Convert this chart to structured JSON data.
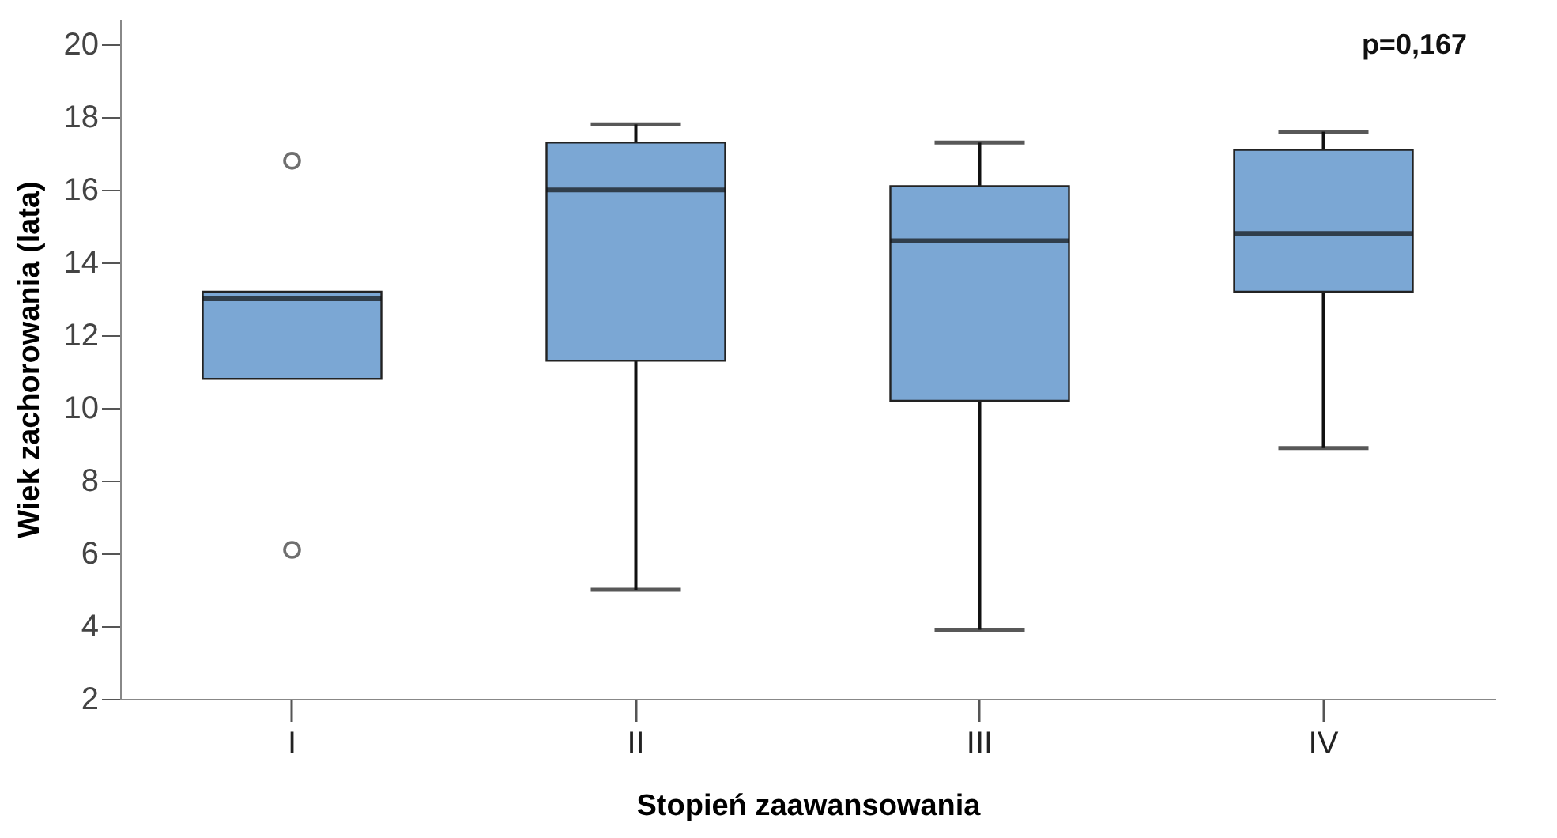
{
  "chart_data": {
    "type": "box",
    "xlabel": "Stopień zaawansowania",
    "ylabel": "Wiek zachorowania (lata)",
    "categories": [
      "I",
      "II",
      "III",
      "IV"
    ],
    "boxes": [
      {
        "low": 10.8,
        "q1": 10.8,
        "median": 13.0,
        "q3": 13.2,
        "high": 13.2,
        "outliers": [
          16.8,
          6.1
        ]
      },
      {
        "low": 5.0,
        "q1": 11.3,
        "median": 16.0,
        "q3": 17.3,
        "high": 17.8
      },
      {
        "low": 3.9,
        "q1": 10.2,
        "median": 14.6,
        "q3": 16.1,
        "high": 17.3
      },
      {
        "low": 8.9,
        "q1": 13.2,
        "median": 14.8,
        "q3": 17.1,
        "high": 17.6
      }
    ],
    "color": "#7ba7d4",
    "ylim": [
      2,
      20.7
    ],
    "yticks": [
      2,
      4,
      6,
      8,
      10,
      12,
      14,
      16,
      18,
      20
    ],
    "grid": false,
    "annotations": [
      "p=0,167"
    ]
  }
}
